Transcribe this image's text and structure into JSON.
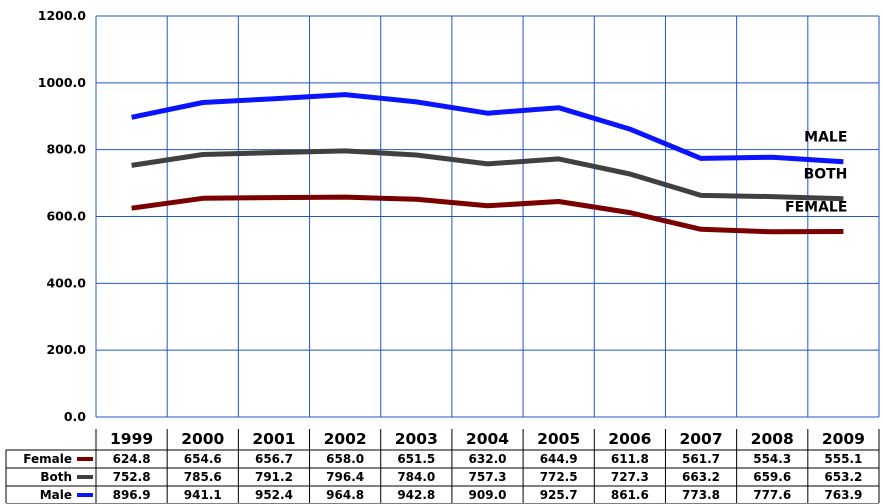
{
  "chart_data": {
    "type": "line",
    "title": "",
    "xlabel": "",
    "ylabel": "",
    "ylim": [
      0,
      1200
    ],
    "yticks": [
      "0.0",
      "200.0",
      "400.0",
      "600.0",
      "800.0",
      "1000.0",
      "1200.0"
    ],
    "grid": true,
    "categories": [
      "1999",
      "2000",
      "2001",
      "2002",
      "2003",
      "2004",
      "2005",
      "2006",
      "2007",
      "2008",
      "2009"
    ],
    "series": [
      {
        "name": "Male",
        "label": "MALE",
        "color": "#0a14ff",
        "values": [
          896.9,
          941.1,
          952.4,
          964.8,
          942.8,
          909.0,
          925.7,
          861.6,
          773.8,
          777.6,
          763.9
        ],
        "cells": [
          "896.9",
          "941.1",
          "952.4",
          "964.8",
          "942.8",
          "909.0",
          "925.7",
          "861.6",
          "773.8",
          "777.6",
          "763.9"
        ]
      },
      {
        "name": "Both",
        "label": "BOTH",
        "color": "#404040",
        "values": [
          752.8,
          785.6,
          791.2,
          796.4,
          784.0,
          757.3,
          772.5,
          727.3,
          663.2,
          659.6,
          653.2
        ],
        "cells": [
          "752.8",
          "785.6",
          "791.2",
          "796.4",
          "784.0",
          "757.3",
          "772.5",
          "727.3",
          "663.2",
          "659.6",
          "653.2"
        ]
      },
      {
        "name": "Female",
        "label": "FEMALE",
        "color": "#7a0000",
        "values": [
          624.8,
          654.6,
          656.7,
          658.0,
          651.5,
          632.0,
          644.9,
          611.8,
          561.7,
          554.3,
          555.1
        ],
        "cells": [
          "624.8",
          "654.6",
          "656.7",
          "658.0",
          "651.5",
          "632.0",
          "644.9",
          "611.8",
          "561.7",
          "554.3",
          "555.1"
        ]
      }
    ],
    "table_row_order": [
      "Female",
      "Both",
      "Male"
    ]
  }
}
